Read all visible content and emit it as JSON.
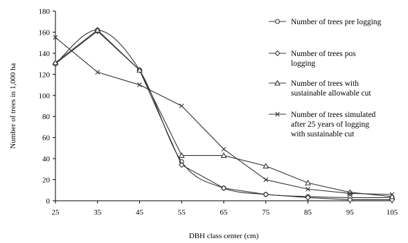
{
  "chart_data": {
    "type": "line",
    "xlabel": "DBH class center (cm)",
    "ylabel": "Number of trees in 1,000 ha",
    "x": [
      25,
      35,
      45,
      55,
      65,
      75,
      85,
      95,
      105
    ],
    "xlim": [
      25,
      105
    ],
    "ylim": [
      0,
      180
    ],
    "xticks": [
      25,
      35,
      45,
      55,
      65,
      75,
      85,
      95,
      105
    ],
    "yticks": [
      0,
      20,
      40,
      60,
      80,
      100,
      120,
      140,
      160,
      180
    ],
    "grid": false,
    "legend_position": "right",
    "series": [
      {
        "name": "Number of trees pre logging",
        "legend_lines": [
          "Number of trees pre logging"
        ],
        "marker": "circle",
        "smooth": true,
        "values": [
          130,
          162,
          124,
          37,
          12,
          6,
          4,
          3,
          3
        ]
      },
      {
        "name": "Number of trees pos logging",
        "legend_lines": [
          "Number of trees pos",
          "logging"
        ],
        "marker": "diamond",
        "smooth": false,
        "values": [
          130,
          161,
          124,
          34,
          12,
          6,
          3,
          1,
          1
        ]
      },
      {
        "name": "Number of trees with sustainable allowable cut",
        "legend_lines": [
          "Number of trees with",
          "sustainable allowable cut"
        ],
        "marker": "triangle",
        "smooth": false,
        "values": [
          131,
          162,
          124,
          43,
          43,
          33,
          17,
          8,
          4
        ]
      },
      {
        "name": "Number of trees simulated after 25 years of logging with sustainable cut",
        "legend_lines": [
          "Number of trees simulated",
          "after 25 years of logging",
          "with sustainable cut"
        ],
        "marker": "x",
        "smooth": false,
        "values": [
          155,
          122,
          110,
          90,
          49,
          20,
          11,
          7,
          6
        ]
      }
    ]
  }
}
